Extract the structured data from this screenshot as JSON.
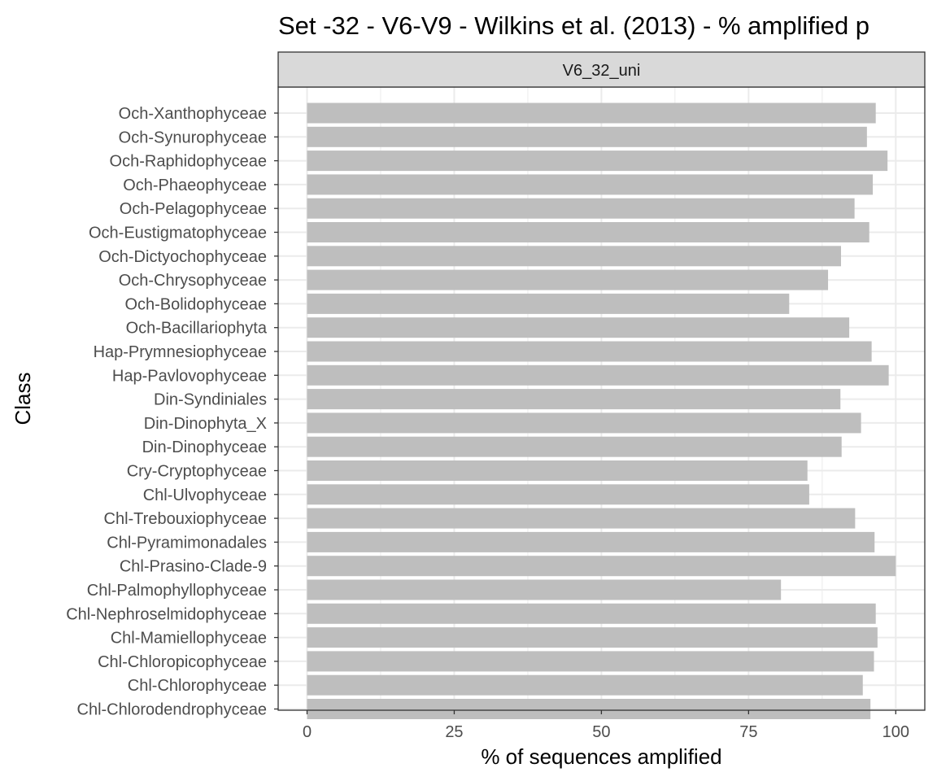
{
  "chart_data": {
    "type": "bar",
    "orientation": "horizontal",
    "title": "Set -32 - V6-V9 - Wilkins et al. (2013) - % amplified p",
    "facet_label": "V6_32_uni",
    "xlabel": "% of sequences amplified",
    "ylabel": "Class",
    "xlim": [
      0,
      100
    ],
    "xticks": [
      "0",
      "25",
      "50",
      "75",
      "100"
    ],
    "grid": true,
    "bar_color": "#bebebe",
    "categories": [
      "Och-Xanthophyceae",
      "Och-Synurophyceae",
      "Och-Raphidophyceae",
      "Och-Phaeophyceae",
      "Och-Pelagophyceae",
      "Och-Eustigmatophyceae",
      "Och-Dictyochophyceae",
      "Och-Chrysophyceae",
      "Och-Bolidophyceae",
      "Och-Bacillariophyta",
      "Hap-Prymnesiophyceae",
      "Hap-Pavlovophyceae",
      "Din-Syndiniales",
      "Din-Dinophyta_X",
      "Din-Dinophyceae",
      "Cry-Cryptophyceae",
      "Chl-Ulvophyceae",
      "Chl-Trebouxiophyceae",
      "Chl-Pyramimonadales",
      "Chl-Prasino-Clade-9",
      "Chl-Palmophyllophyceae",
      "Chl-Nephroselmidophyceae",
      "Chl-Mamiellophyceae",
      "Chl-Chloropicophyceae",
      "Chl-Chlorophyceae",
      "Chl-Chlorodendrophyceae"
    ],
    "values": [
      96.6,
      95.1,
      98.6,
      96.1,
      93.0,
      95.5,
      90.7,
      88.5,
      81.9,
      92.1,
      95.9,
      98.8,
      90.6,
      94.1,
      90.8,
      85.0,
      85.3,
      93.1,
      96.4,
      100.0,
      80.5,
      96.6,
      96.9,
      96.3,
      94.4,
      95.7
    ]
  }
}
